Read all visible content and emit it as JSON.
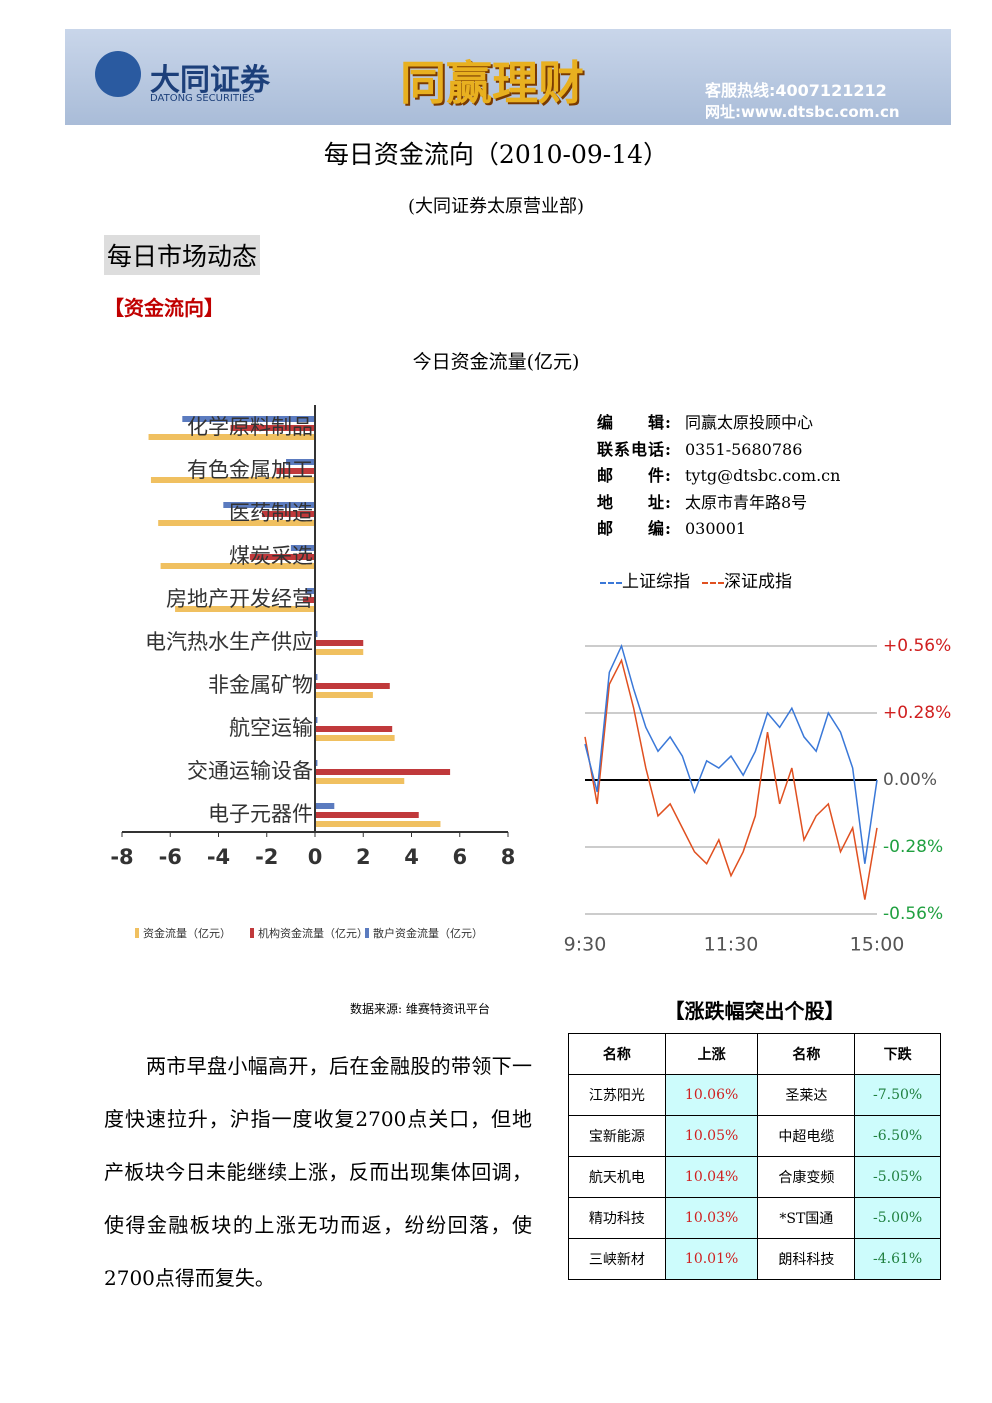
{
  "header": {
    "logo_cn": "大同证券",
    "logo_en": "DATONG SECURITIES",
    "slogan": "同赢理财",
    "hotline": "客服热线:4007121212",
    "website": "网址:www.dtsbc.com.cn"
  },
  "title": "每日资金流向（2010-09-14）",
  "subtitle": "(大同证券太原营业部)",
  "section": "每日市场动态",
  "subsection": "【资金流向】",
  "contact": [
    {
      "label": "编　　辑:",
      "value": "同赢太原投顾中心"
    },
    {
      "label": "联系电话:",
      "value": "0351-5680786"
    },
    {
      "label": "邮　　件:",
      "value": "tytg@dtsbc.com.cn"
    },
    {
      "label": "地　　址:",
      "value": "太原市青年路8号"
    },
    {
      "label": "邮　　编:",
      "value": "030001"
    }
  ],
  "chart_data": [
    {
      "type": "hbar",
      "title": "今日资金流量(亿元)",
      "categories": [
        "化学原料制品",
        "有色金属加工",
        "医药制造",
        "煤炭采选",
        "房地产开发经营",
        "电汽热水生产供应",
        "非金属矿物",
        "航空运输",
        "交通运输设备",
        "电子元器件"
      ],
      "series": [
        {
          "name": "散户资金流量（亿元）",
          "color": "#5b7bbf",
          "values": [
            -5.5,
            -1.2,
            -3.8,
            -1.0,
            -0.4,
            0.1,
            0.1,
            0.1,
            0.1,
            0.8
          ]
        },
        {
          "name": "机构资金流量（亿元）",
          "color": "#c0393b",
          "values": [
            -3.5,
            -1.6,
            -2.2,
            -2.7,
            -0.5,
            2.0,
            3.1,
            3.2,
            5.6,
            4.3
          ]
        },
        {
          "name": "资金流量（亿元）",
          "color": "#f0c060",
          "values": [
            -6.9,
            -6.8,
            -6.5,
            -6.4,
            -5.8,
            2.0,
            2.4,
            3.3,
            3.7,
            5.2
          ]
        }
      ],
      "xlim": [
        -8,
        8
      ],
      "xticks": [
        -8,
        -6,
        -4,
        -2,
        0,
        2,
        4,
        6,
        8
      ],
      "source": "数据来源: 维赛特资讯平台"
    },
    {
      "type": "line",
      "x": [
        0,
        10,
        20,
        30,
        40,
        50,
        60,
        70,
        80,
        90,
        100,
        110,
        120,
        130,
        140,
        150,
        160,
        170,
        180,
        190,
        200,
        210,
        220,
        230,
        240
      ],
      "xlim": [
        0,
        240
      ],
      "xticks": [
        {
          "value": 0,
          "label": "9:30"
        },
        {
          "value": 120,
          "label": "11:30"
        },
        {
          "value": 240,
          "label": "15:00"
        }
      ],
      "ylim": [
        -0.6,
        0.6
      ],
      "yticks": [
        {
          "value": 0.56,
          "label": "+0.56%"
        },
        {
          "value": 0.28,
          "label": "+0.28%"
        },
        {
          "value": 0,
          "label": "0.00%"
        },
        {
          "value": -0.28,
          "label": "-0.28%"
        },
        {
          "value": -0.56,
          "label": "-0.56%"
        }
      ],
      "series": [
        {
          "name": "上证综指",
          "color": "#3a78d8",
          "values": [
            0.15,
            -0.05,
            0.45,
            0.56,
            0.38,
            0.22,
            0.12,
            0.18,
            0.1,
            -0.05,
            0.08,
            0.05,
            0.1,
            0.02,
            0.12,
            0.28,
            0.22,
            0.3,
            0.18,
            0.12,
            0.28,
            0.2,
            0.05,
            -0.35,
            0.0
          ]
        },
        {
          "name": "深证成指",
          "color": "#e05020",
          "values": [
            0.18,
            -0.1,
            0.4,
            0.5,
            0.3,
            0.05,
            -0.15,
            -0.1,
            -0.2,
            -0.3,
            -0.35,
            -0.25,
            -0.4,
            -0.3,
            -0.15,
            0.2,
            -0.1,
            0.05,
            -0.25,
            -0.15,
            -0.1,
            -0.3,
            -0.2,
            -0.5,
            -0.2
          ]
        }
      ]
    }
  ],
  "paragraph": "两市早盘小幅高开，后在金融股的带领下一度快速拉升，沪指一度收复2700点关口，但地产板块今日未能继续上涨，反而出现集体回调，使得金融板块的上涨无功而返，纷纷回落，使2700点得而复失。",
  "table": {
    "title": "【涨跌幅突出个股】",
    "header": [
      "名称",
      "上涨",
      "名称",
      "下跌"
    ],
    "rows": [
      [
        "江苏阳光",
        "10.06%",
        "圣莱达",
        "-7.50%"
      ],
      [
        "宝新能源",
        "10.05%",
        "中超电缆",
        "-6.50%"
      ],
      [
        "航天机电",
        "10.04%",
        "合康变频",
        "-5.05%"
      ],
      [
        "精功科技",
        "10.03%",
        "*ST国通",
        "-5.00%"
      ],
      [
        "三峡新材",
        "10.01%",
        "朗科科技",
        "-4.61%"
      ]
    ]
  }
}
